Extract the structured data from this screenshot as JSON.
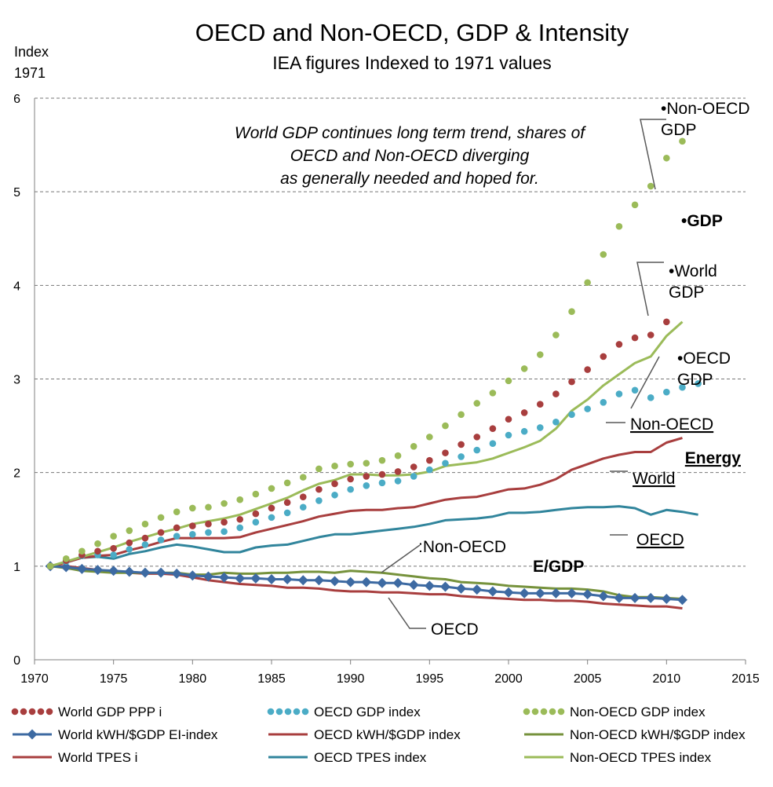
{
  "chart_data": {
    "type": "line",
    "title": "OECD and Non-OECD, GDP & Intensity",
    "subtitle": "IEA figures Indexed to 1971 values",
    "ylabel_lines": [
      "Index",
      "1971"
    ],
    "xlabel": "",
    "xlim": [
      1970,
      2015
    ],
    "ylim": [
      0,
      6
    ],
    "x_ticks": [
      1970,
      1975,
      1980,
      1985,
      1990,
      1995,
      2000,
      2005,
      2010,
      2015
    ],
    "y_ticks": [
      0,
      1,
      2,
      3,
      4,
      5,
      6
    ],
    "grid": "horizontal-dashed",
    "legend_position": "bottom",
    "note_lines": [
      "World GDP continues long term trend, shares of",
      "OECD and Non-OECD diverging",
      "as generally needed and hoped for."
    ],
    "annotations": [
      {
        "id": "gdp-header",
        "lines": [
          "•GDP"
        ],
        "style": "bold",
        "underline": false
      },
      {
        "id": "nonoecd-gdp",
        "lines": [
          "•Non-OECD",
          "GDP"
        ],
        "style": "normal",
        "underline": false
      },
      {
        "id": "world-gdp",
        "lines": [
          "•World",
          "GDP"
        ],
        "style": "normal",
        "underline": false
      },
      {
        "id": "oecd-gdp",
        "lines": [
          "•OECD",
          "GDP"
        ],
        "style": "normal",
        "underline": false
      },
      {
        "id": "energy-header",
        "lines": [
          "Energy"
        ],
        "style": "bold",
        "underline": true
      },
      {
        "id": "nonoecd-tpes",
        "lines": [
          "Non-OECD"
        ],
        "style": "normal",
        "underline": true
      },
      {
        "id": "world-tpes",
        "lines": [
          "World"
        ],
        "style": "normal",
        "underline": true
      },
      {
        "id": "oecd-tpes",
        "lines": [
          "OECD"
        ],
        "style": "normal",
        "underline": true
      },
      {
        "id": "egdp-header",
        "lines": [
          "E/GDP"
        ],
        "style": "bold",
        "underline": false
      },
      {
        "id": "nonoecd-ei",
        "lines": [
          ":Non-OECD"
        ],
        "style": "normal",
        "underline": false
      },
      {
        "id": "oecd-ei",
        "lines": [
          "OECD"
        ],
        "style": "normal",
        "underline": false
      }
    ],
    "x": [
      1971,
      1972,
      1973,
      1974,
      1975,
      1976,
      1977,
      1978,
      1979,
      1980,
      1981,
      1982,
      1983,
      1984,
      1985,
      1986,
      1987,
      1988,
      1989,
      1990,
      1991,
      1992,
      1993,
      1994,
      1995,
      1996,
      1997,
      1998,
      1999,
      2000,
      2001,
      2002,
      2003,
      2004,
      2005,
      2006,
      2007,
      2008,
      2009,
      2010,
      2011,
      2012
    ],
    "series": [
      {
        "name": "World GDP PPP i",
        "color": "#a83e3e",
        "style": "dots",
        "values": [
          1.0,
          1.06,
          1.12,
          1.16,
          1.19,
          1.25,
          1.3,
          1.36,
          1.41,
          1.43,
          1.45,
          1.47,
          1.5,
          1.56,
          1.62,
          1.68,
          1.74,
          1.82,
          1.88,
          1.93,
          1.96,
          1.98,
          2.01,
          2.06,
          2.13,
          2.21,
          2.3,
          2.38,
          2.47,
          2.57,
          2.64,
          2.73,
          2.84,
          2.97,
          3.1,
          3.24,
          3.37,
          3.44,
          3.47,
          3.61,
          null,
          null
        ]
      },
      {
        "name": "OECD GDP index",
        "color": "#4bacc6",
        "style": "dots",
        "values": [
          1.0,
          1.05,
          1.11,
          1.12,
          1.12,
          1.18,
          1.23,
          1.28,
          1.32,
          1.34,
          1.36,
          1.37,
          1.41,
          1.47,
          1.52,
          1.57,
          1.63,
          1.7,
          1.76,
          1.82,
          1.86,
          1.89,
          1.91,
          1.96,
          2.03,
          2.1,
          2.17,
          2.24,
          2.31,
          2.4,
          2.44,
          2.48,
          2.54,
          2.62,
          2.68,
          2.75,
          2.84,
          2.88,
          2.8,
          2.86,
          2.91,
          2.95
        ]
      },
      {
        "name": "Non-OECD GDP index",
        "color": "#9bbb59",
        "style": "dots",
        "values": [
          1.0,
          1.08,
          1.16,
          1.24,
          1.32,
          1.38,
          1.45,
          1.52,
          1.58,
          1.62,
          1.63,
          1.67,
          1.71,
          1.77,
          1.83,
          1.89,
          1.95,
          2.04,
          2.07,
          2.09,
          2.1,
          2.13,
          2.18,
          2.28,
          2.38,
          2.5,
          2.62,
          2.74,
          2.85,
          2.98,
          3.11,
          3.26,
          3.47,
          3.72,
          4.03,
          4.33,
          4.63,
          4.86,
          5.06,
          5.36,
          5.54,
          null
        ]
      },
      {
        "name": "World kWH/$GDP EI-index",
        "color": "#3d6aa2",
        "style": "line-diamond",
        "values": [
          1.0,
          0.99,
          0.97,
          0.96,
          0.95,
          0.94,
          0.93,
          0.93,
          0.92,
          0.9,
          0.89,
          0.88,
          0.87,
          0.87,
          0.86,
          0.86,
          0.85,
          0.85,
          0.84,
          0.83,
          0.83,
          0.82,
          0.82,
          0.8,
          0.79,
          0.78,
          0.76,
          0.75,
          0.73,
          0.72,
          0.71,
          0.71,
          0.71,
          0.71,
          0.7,
          0.68,
          0.66,
          0.66,
          0.66,
          0.65,
          0.64,
          null
        ]
      },
      {
        "name": "OECD kWH/$GDP index",
        "color": "#a83e3e",
        "style": "line",
        "values": [
          1.0,
          1.0,
          0.98,
          0.96,
          0.94,
          0.93,
          0.92,
          0.92,
          0.91,
          0.88,
          0.85,
          0.83,
          0.81,
          0.8,
          0.79,
          0.77,
          0.77,
          0.76,
          0.74,
          0.73,
          0.73,
          0.72,
          0.72,
          0.71,
          0.7,
          0.7,
          0.68,
          0.67,
          0.66,
          0.65,
          0.64,
          0.64,
          0.63,
          0.63,
          0.62,
          0.6,
          0.59,
          0.58,
          0.57,
          0.57,
          0.55,
          null
        ]
      },
      {
        "name": "Non-OECD kWH/$GDP index",
        "color": "#76923c",
        "style": "line",
        "values": [
          1.0,
          0.98,
          0.95,
          0.94,
          0.93,
          0.93,
          0.93,
          0.93,
          0.93,
          0.91,
          0.91,
          0.93,
          0.92,
          0.92,
          0.93,
          0.93,
          0.94,
          0.94,
          0.93,
          0.95,
          0.94,
          0.93,
          0.91,
          0.89,
          0.87,
          0.86,
          0.83,
          0.82,
          0.81,
          0.79,
          0.78,
          0.77,
          0.76,
          0.76,
          0.75,
          0.73,
          0.69,
          0.67,
          0.67,
          0.66,
          0.65,
          null
        ]
      },
      {
        "name": "World TPES i",
        "color": "#a83e3e",
        "style": "line",
        "values": [
          1.0,
          1.04,
          1.09,
          1.11,
          1.12,
          1.17,
          1.21,
          1.26,
          1.3,
          1.3,
          1.3,
          1.3,
          1.31,
          1.36,
          1.4,
          1.44,
          1.48,
          1.53,
          1.56,
          1.59,
          1.6,
          1.6,
          1.62,
          1.63,
          1.67,
          1.71,
          1.73,
          1.74,
          1.78,
          1.82,
          1.83,
          1.87,
          1.93,
          2.03,
          2.09,
          2.15,
          2.19,
          2.22,
          2.22,
          2.32,
          2.37,
          null
        ]
      },
      {
        "name": "OECD TPES index",
        "color": "#31859c",
        "style": "line",
        "values": [
          1.0,
          1.04,
          1.09,
          1.1,
          1.08,
          1.13,
          1.16,
          1.2,
          1.23,
          1.21,
          1.18,
          1.15,
          1.15,
          1.2,
          1.22,
          1.23,
          1.27,
          1.31,
          1.34,
          1.34,
          1.36,
          1.38,
          1.4,
          1.42,
          1.45,
          1.49,
          1.5,
          1.51,
          1.53,
          1.57,
          1.57,
          1.58,
          1.6,
          1.62,
          1.63,
          1.63,
          1.64,
          1.62,
          1.55,
          1.6,
          1.58,
          1.55
        ]
      },
      {
        "name": "Non-OECD TPES index",
        "color": "#9bbb59",
        "style": "line",
        "values": [
          1.0,
          1.05,
          1.1,
          1.15,
          1.2,
          1.26,
          1.31,
          1.36,
          1.4,
          1.45,
          1.48,
          1.51,
          1.55,
          1.61,
          1.67,
          1.73,
          1.81,
          1.88,
          1.92,
          1.98,
          1.98,
          1.97,
          1.97,
          1.98,
          2.01,
          2.07,
          2.09,
          2.11,
          2.15,
          2.21,
          2.27,
          2.34,
          2.47,
          2.66,
          2.78,
          2.93,
          3.05,
          3.17,
          3.24,
          3.46,
          3.61,
          null
        ]
      }
    ]
  }
}
